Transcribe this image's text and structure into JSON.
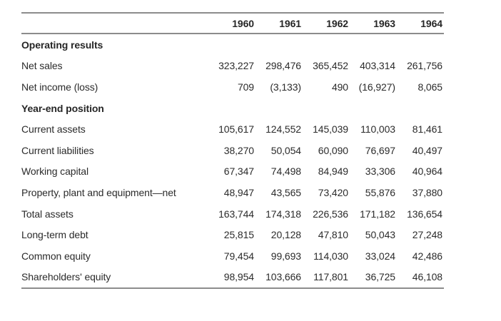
{
  "table": {
    "columns": [
      "1960",
      "1961",
      "1962",
      "1963",
      "1964"
    ],
    "sections": [
      {
        "header": "Operating results",
        "rows": [
          {
            "label": "Net sales",
            "values": [
              "323,227",
              "298,476",
              "365,452",
              "403,314",
              "261,756"
            ]
          },
          {
            "label": "Net income (loss)",
            "values": [
              "709",
              "(3,133)",
              "490",
              "(16,927)",
              "8,065"
            ]
          }
        ]
      },
      {
        "header": "Year-end position",
        "rows": [
          {
            "label": "Current assets",
            "values": [
              "105,617",
              "124,552",
              "145,039",
              "110,003",
              "81,461"
            ]
          },
          {
            "label": "Current liabilities",
            "values": [
              "38,270",
              "50,054",
              "60,090",
              "76,697",
              "40,497"
            ]
          },
          {
            "label": "Working capital",
            "values": [
              "67,347",
              "74,498",
              "84,949",
              "33,306",
              "40,964"
            ]
          },
          {
            "label": "Property, plant and equipment—net",
            "values": [
              "48,947",
              "43,565",
              "73,420",
              "55,876",
              "37,880"
            ]
          },
          {
            "label": "Total assets",
            "values": [
              "163,744",
              "174,318",
              "226,536",
              "171,182",
              "136,654"
            ]
          },
          {
            "label": "Long-term debt",
            "values": [
              "25,815",
              "20,128",
              "47,810",
              "50,043",
              "27,248"
            ]
          },
          {
            "label": "Common equity",
            "values": [
              "79,454",
              "99,693",
              "114,030",
              "33,024",
              "42,486"
            ]
          },
          {
            "label": "Shareholders' equity",
            "values": [
              "98,954",
              "103,666",
              "117,801",
              "36,725",
              "46,108"
            ]
          }
        ]
      }
    ]
  },
  "colors": {
    "text": "#2b2b2b",
    "section_text": "#262626",
    "rule": "#8c8c8c",
    "background": "#ffffff"
  }
}
